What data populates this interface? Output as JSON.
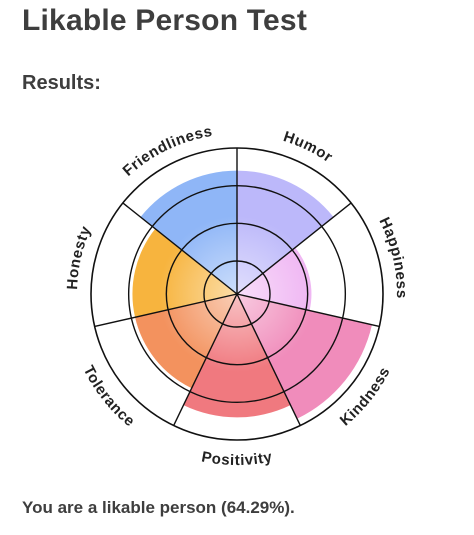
{
  "header": {
    "title": "Likable Person Test",
    "results_heading": "Results:"
  },
  "result": {
    "text": "You are a likable person (64.29%)."
  },
  "chart_data": {
    "type": "polar-area",
    "title": "",
    "scale_max": 4,
    "rings": 4,
    "categories": [
      "Humor",
      "Happiness",
      "Kindness",
      "Positivity",
      "Tolerance",
      "Honesty",
      "Friendliness"
    ],
    "values": [
      3.4,
      2.1,
      3.8,
      3.4,
      2.9,
      2.9,
      3.4
    ],
    "colors": [
      "#bcb8fa",
      "#efb5f3",
      "#f08cbb",
      "#f0797f",
      "#f3925e",
      "#f7b43e",
      "#8fb6f7"
    ]
  }
}
